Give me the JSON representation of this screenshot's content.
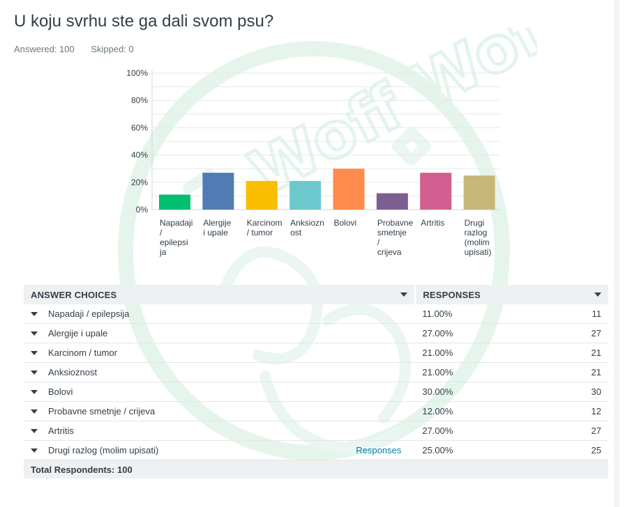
{
  "question": {
    "title": "U koju svrhu ste ga dali svom psu?",
    "answered": "Answered: 100",
    "skipped": "Skipped: 0"
  },
  "chart_data": {
    "type": "bar",
    "categories": [
      [
        "Napadaji",
        "/",
        "epilepsi",
        "ja"
      ],
      [
        "Alergije",
        "i upale"
      ],
      [
        "Karcinom",
        "/ tumor"
      ],
      [
        "Anksiozn",
        "ost"
      ],
      [
        "Bolovi"
      ],
      [
        "Probavne",
        "smetnje",
        "/",
        "crijeva"
      ],
      [
        "Artritis"
      ],
      [
        "Drugi",
        "razlog",
        "(molim",
        "upisati)"
      ]
    ],
    "values": [
      11,
      27,
      21,
      21,
      30,
      12,
      27,
      25
    ],
    "colors": [
      "#00bf6f",
      "#507cb6",
      "#f9be00",
      "#6bc8cd",
      "#ff8b4f",
      "#7d5e90",
      "#d25f90",
      "#c7b879"
    ],
    "yticks": [
      "0%",
      "20%",
      "40%",
      "60%",
      "80%",
      "100%"
    ],
    "ylim": [
      0,
      100
    ],
    "grid": true
  },
  "table": {
    "header_choices": "ANSWER CHOICES",
    "header_responses": "RESPONSES",
    "rows": [
      {
        "choice": "Napadaji / epilepsija",
        "pct": "11.00%",
        "count": "11"
      },
      {
        "choice": "Alergije i upale",
        "pct": "27.00%",
        "count": "27"
      },
      {
        "choice": "Karcinom / tumor",
        "pct": "21.00%",
        "count": "21"
      },
      {
        "choice": "Anksioznost",
        "pct": "21.00%",
        "count": "21"
      },
      {
        "choice": "Bolovi",
        "pct": "30.00%",
        "count": "30"
      },
      {
        "choice": "Probavne smetnje / crijeva",
        "pct": "12.00%",
        "count": "12"
      },
      {
        "choice": "Artritis",
        "pct": "27.00%",
        "count": "27"
      },
      {
        "choice": "Drugi razlog (molim upisati)",
        "pct": "25.00%",
        "count": "25",
        "link": "Responses"
      }
    ],
    "total": "Total Respondents: 100"
  },
  "watermark": {
    "text": "Woff Woff",
    "color": "#e6f5ec"
  }
}
